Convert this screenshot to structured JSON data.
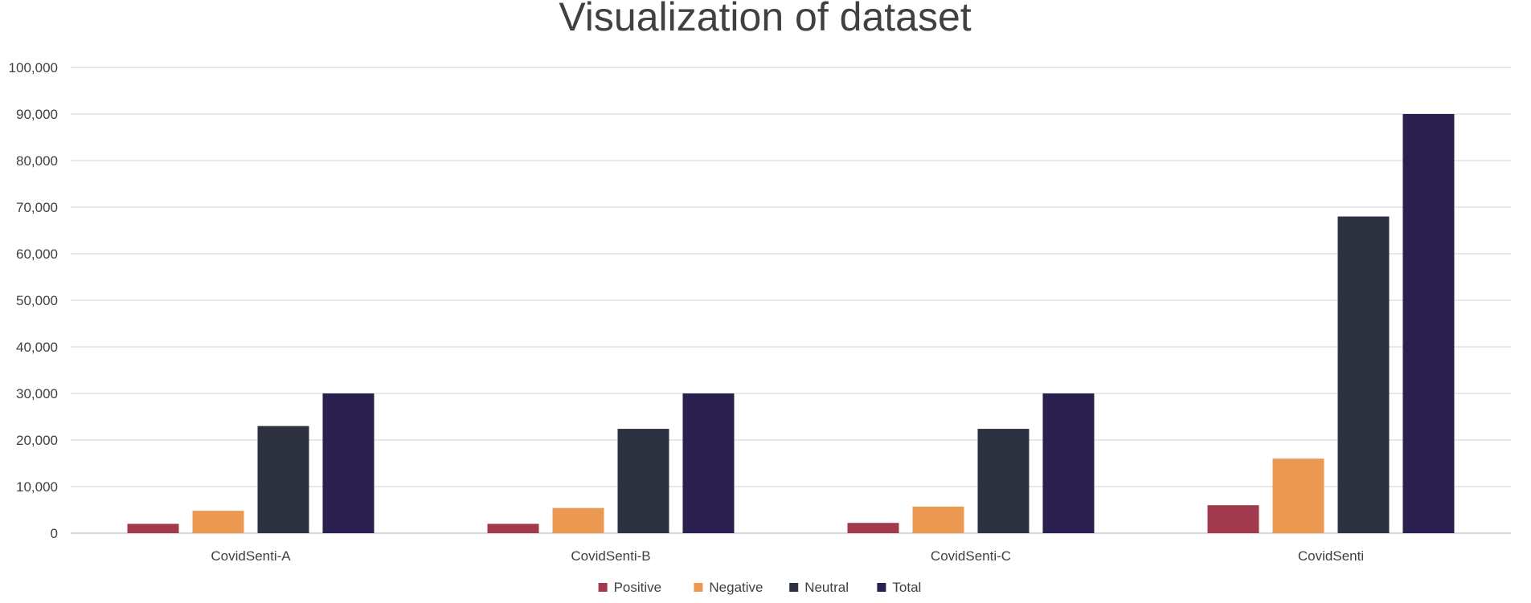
{
  "chart_data": {
    "type": "bar",
    "title": "Visualization of dataset",
    "xlabel": "",
    "ylabel": "",
    "ylim": [
      0,
      100000
    ],
    "yticks": [
      0,
      10000,
      20000,
      30000,
      40000,
      50000,
      60000,
      70000,
      80000,
      90000,
      100000
    ],
    "ytick_labels": [
      "0",
      "10,000",
      "20,000",
      "30,000",
      "40,000",
      "50,000",
      "60,000",
      "70,000",
      "80,000",
      "90,000",
      "100,000"
    ],
    "grid": true,
    "legend_position": "bottom",
    "categories": [
      "CovidSenti-A",
      "CovidSenti-B",
      "CovidSenti-C",
      "CovidSenti"
    ],
    "series": [
      {
        "name": "Positive",
        "color": "#a23a4d",
        "values": [
          2000,
          2000,
          2200,
          6000
        ]
      },
      {
        "name": "Negative",
        "color": "#eb9851",
        "values": [
          4800,
          5400,
          5700,
          16000
        ]
      },
      {
        "name": "Neutral",
        "color": "#2d3140",
        "values": [
          23000,
          22400,
          22400,
          68000
        ]
      },
      {
        "name": "Total",
        "color": "#2a1f4f",
        "values": [
          30000,
          30000,
          30000,
          90000
        ]
      }
    ]
  }
}
